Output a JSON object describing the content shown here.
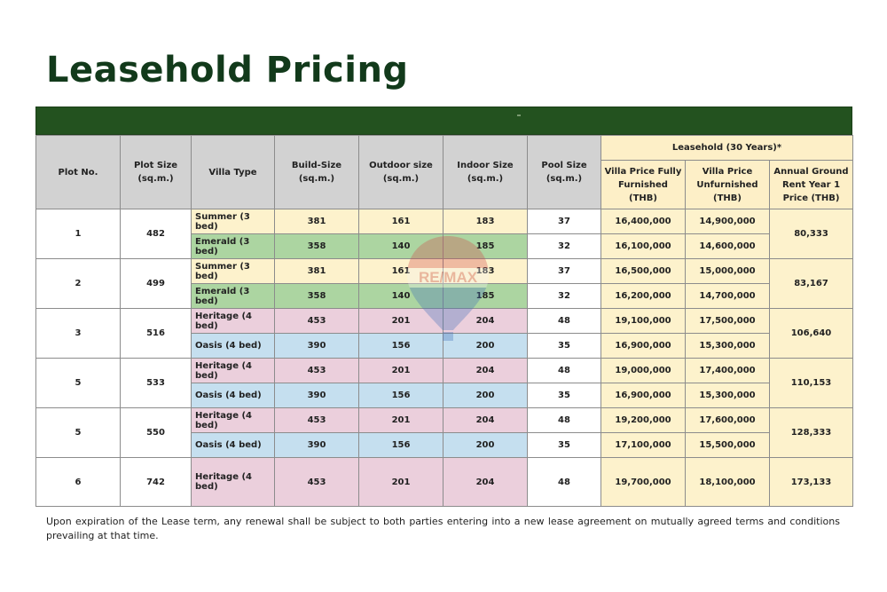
{
  "title": "Leasehold Pricing",
  "header": {
    "plot_no": "Plot No.",
    "plot_size": "Plot Size (sq.m.)",
    "villa_type": "Villa Type",
    "build_size": "Build-Size (sq.m.)",
    "outdoor_size": "Outdoor size (sq.m.)",
    "indoor_size": "Indoor Size (sq.m.)",
    "pool_size": "Pool Size (sq.m.)",
    "leasehold_group": "Leasehold (30 Years)*",
    "price_furnished": "Villa Price Fully Furnished (THB)",
    "price_unfurnished": "Villa Price Unfurnished (THB)",
    "annual_rent": "Annual Ground Rent Year 1 Price (THB)"
  },
  "plots": [
    {
      "plot": "1",
      "size": "482",
      "rent": "80,333",
      "villas": [
        {
          "type": "Summer (3 bed)",
          "build": "381",
          "outdoor": "161",
          "indoor": "183",
          "pool": "37",
          "furnished": "16,400,000",
          "unfurnished": "14,900,000"
        },
        {
          "type": "Emerald (3 bed)",
          "build": "358",
          "outdoor": "140",
          "indoor": "185",
          "pool": "32",
          "furnished": "16,100,000",
          "unfurnished": "14,600,000"
        }
      ]
    },
    {
      "plot": "2",
      "size": "499",
      "rent": "83,167",
      "villas": [
        {
          "type": "Summer (3 bed)",
          "build": "381",
          "outdoor": "161",
          "indoor": "183",
          "pool": "37",
          "furnished": "16,500,000",
          "unfurnished": "15,000,000"
        },
        {
          "type": "Emerald (3 bed)",
          "build": "358",
          "outdoor": "140",
          "indoor": "185",
          "pool": "32",
          "furnished": "16,200,000",
          "unfurnished": "14,700,000"
        }
      ]
    },
    {
      "plot": "3",
      "size": "516",
      "rent": "106,640",
      "villas": [
        {
          "type": "Heritage (4 bed)",
          "build": "453",
          "outdoor": "201",
          "indoor": "204",
          "pool": "48",
          "furnished": "19,100,000",
          "unfurnished": "17,500,000"
        },
        {
          "type": "Oasis (4 bed)",
          "build": "390",
          "outdoor": "156",
          "indoor": "200",
          "pool": "35",
          "furnished": "16,900,000",
          "unfurnished": "15,300,000"
        }
      ]
    },
    {
      "plot": "5",
      "size": "533",
      "rent": "110,153",
      "villas": [
        {
          "type": "Heritage (4 bed)",
          "build": "453",
          "outdoor": "201",
          "indoor": "204",
          "pool": "48",
          "furnished": "19,000,000",
          "unfurnished": "17,400,000"
        },
        {
          "type": "Oasis (4 bed)",
          "build": "390",
          "outdoor": "156",
          "indoor": "200",
          "pool": "35",
          "furnished": "16,900,000",
          "unfurnished": "15,300,000"
        }
      ]
    },
    {
      "plot": "5",
      "size": "550",
      "rent": "128,333",
      "villas": [
        {
          "type": "Heritage (4 bed)",
          "build": "453",
          "outdoor": "201",
          "indoor": "204",
          "pool": "48",
          "furnished": "19,200,000",
          "unfurnished": "17,600,000"
        },
        {
          "type": "Oasis (4 bed)",
          "build": "390",
          "outdoor": "156",
          "indoor": "200",
          "pool": "35",
          "furnished": "17,100,000",
          "unfurnished": "15,500,000"
        }
      ]
    },
    {
      "plot": "6",
      "size": "742",
      "rent": "173,133",
      "villas": [
        {
          "type": "Heritage (4 bed)",
          "build": "453",
          "outdoor": "201",
          "indoor": "204",
          "pool": "48",
          "furnished": "19,700,000",
          "unfurnished": "18,100,000"
        }
      ]
    }
  ],
  "watermark": {
    "text": "RE/MAX",
    "icon": "balloon-logo"
  },
  "footnote": "Upon expiration of the Lease term, any renewal shall be subject to both parties entering into a new lease agreement on mutually agreed terms and conditions prevailing at that time.",
  "colors": {
    "title": "#123a1b",
    "band": "#23521f",
    "header_gray": "#d2d2d2",
    "header_yellow": "#fdefc7",
    "summer": "#fdf2cc",
    "emerald": "#acd5a1",
    "heritage": "#ebcfdc",
    "oasis": "#c5dfef"
  }
}
